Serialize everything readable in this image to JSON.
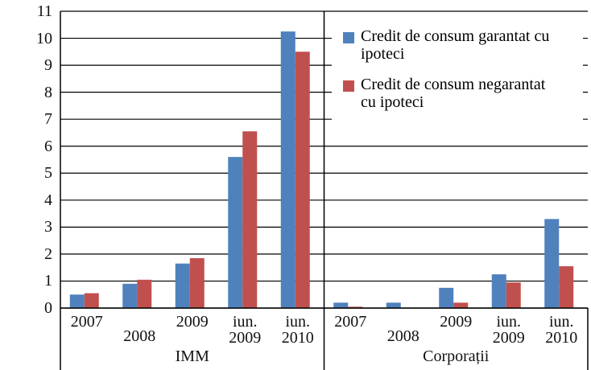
{
  "chart_data": {
    "type": "bar",
    "groups": [
      {
        "name": "IMM",
        "categories": [
          "2007",
          "2008",
          "2009",
          "iun. 2009",
          "iun. 2010"
        ]
      },
      {
        "name": "Corporații",
        "categories": [
          "2007",
          "2008",
          "2009",
          "iun. 2009",
          "iun. 2010"
        ]
      }
    ],
    "series": [
      {
        "name": "Credit de consum garantat cu ipoteci",
        "color": "#4f81bd",
        "values": [
          0.5,
          0.9,
          1.65,
          5.6,
          10.25,
          0.2,
          0.2,
          0.75,
          1.25,
          3.3
        ]
      },
      {
        "name": "Credit de consum negarantat cu ipoteci",
        "color": "#c0504d",
        "values": [
          0.55,
          1.05,
          1.85,
          6.55,
          9.5,
          0.05,
          0,
          0.2,
          0.95,
          1.55
        ]
      }
    ],
    "ylim": [
      0,
      11
    ],
    "yticks": [
      0,
      1,
      2,
      3,
      4,
      5,
      6,
      7,
      8,
      9,
      10,
      11
    ],
    "grid": true,
    "legend": "top-right"
  }
}
